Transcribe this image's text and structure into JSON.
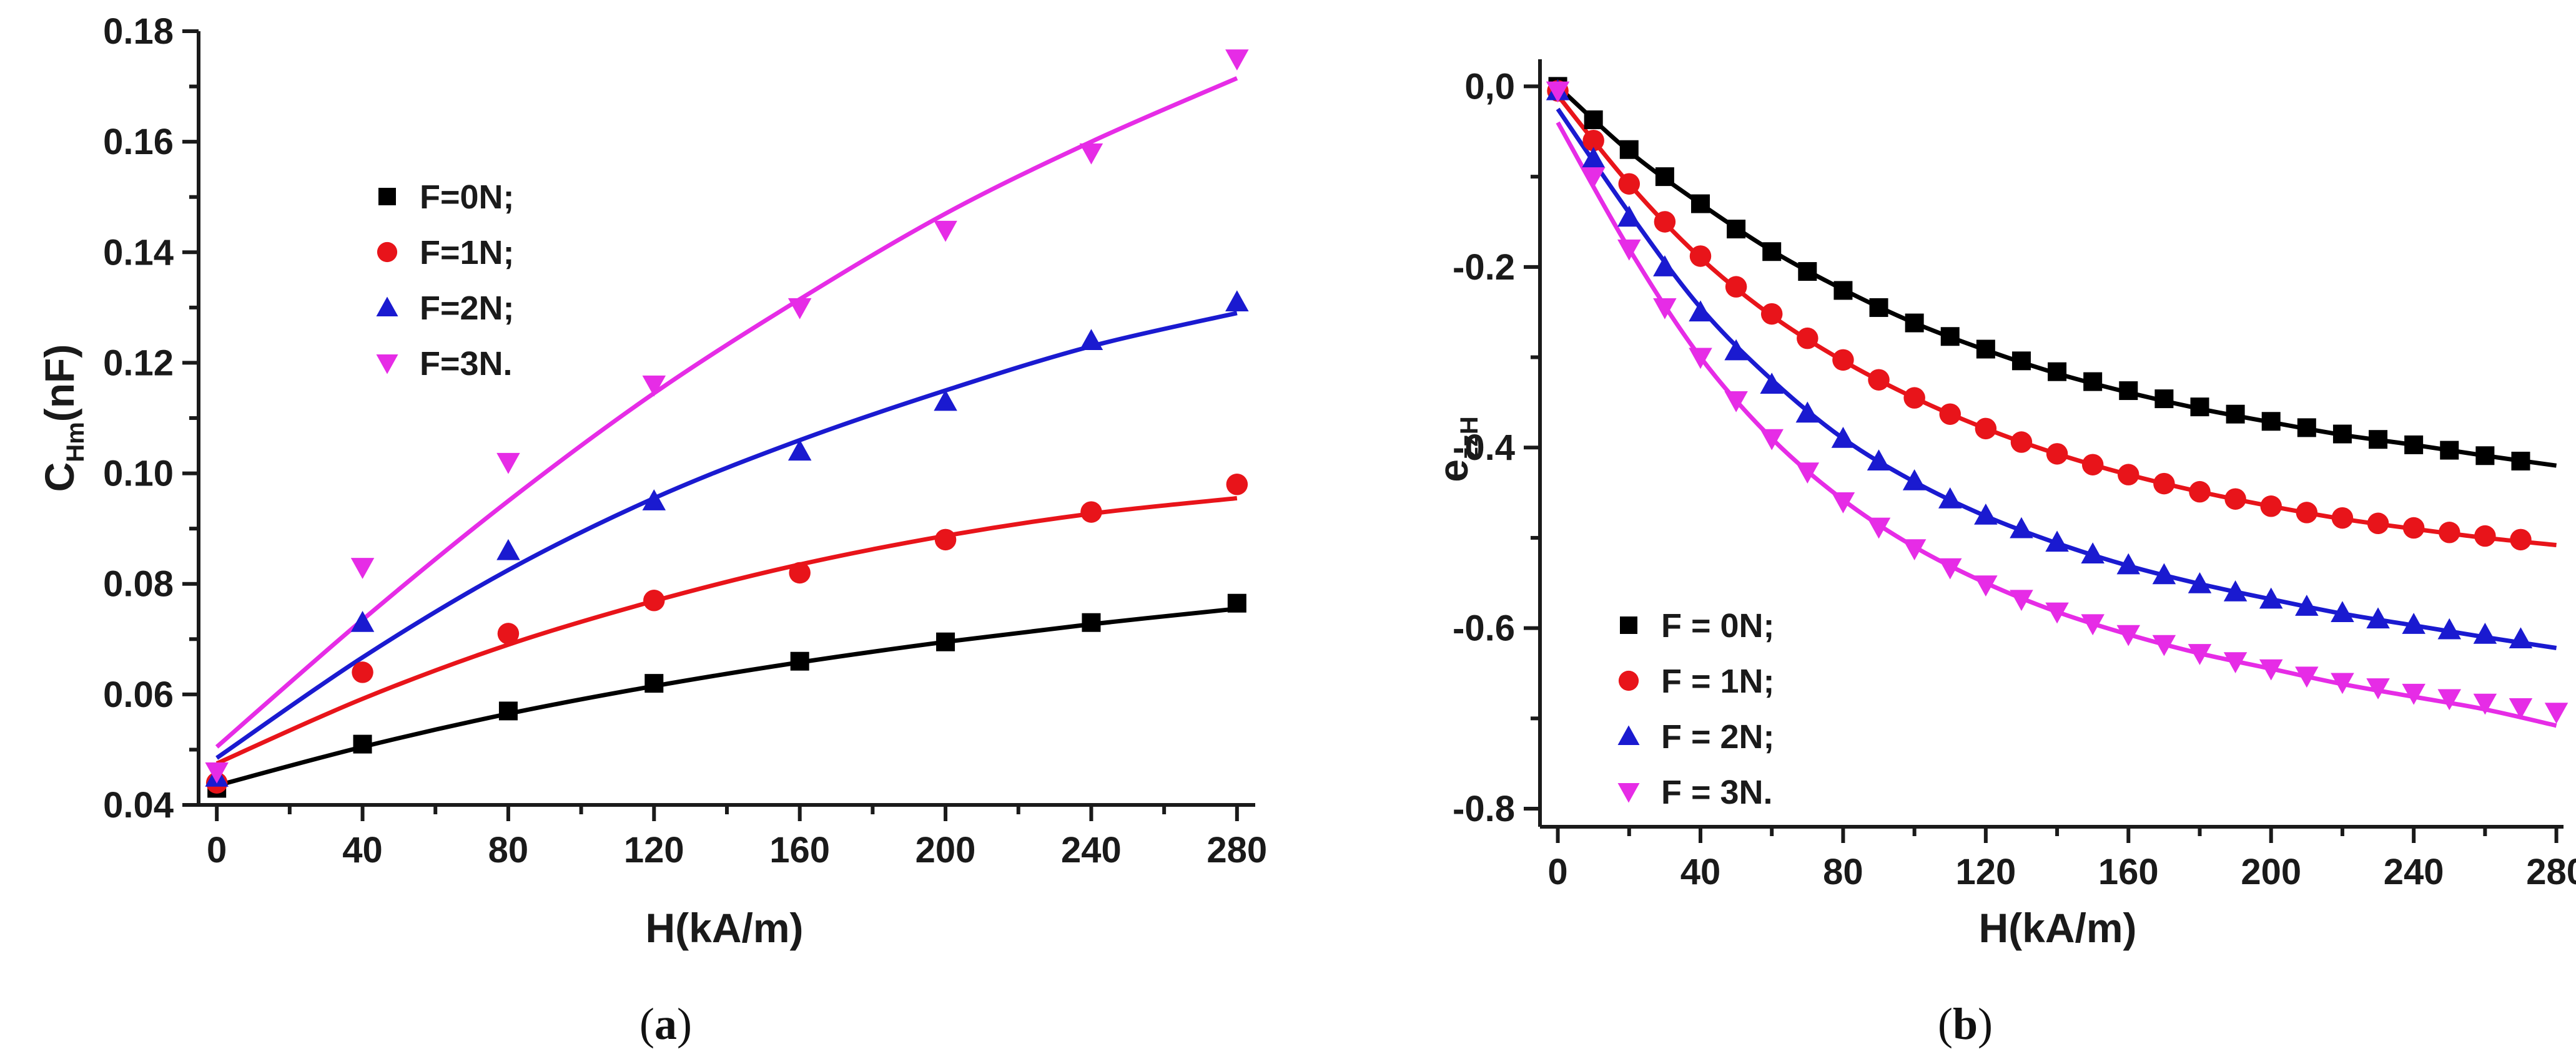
{
  "chart_data": [
    {
      "type": "scatter",
      "panel": "a",
      "caption_letter": "a",
      "xlabel": "H(kA/m)",
      "ylabel_main": "C",
      "ylabel_sub": "Hm",
      "ylabel_tail": "(nF)",
      "xlim": [
        -5,
        285
      ],
      "ylim": [
        0.04,
        0.18
      ],
      "x_ticks": [
        0,
        40,
        80,
        120,
        160,
        200,
        240,
        280
      ],
      "x_tick_labels": [
        "0",
        "40",
        "80",
        "120",
        "160",
        "200",
        "240",
        "280"
      ],
      "y_ticks": [
        0.04,
        0.06,
        0.08,
        0.1,
        0.12,
        0.14,
        0.16,
        0.18
      ],
      "y_tick_labels": [
        "0.04",
        "0.06",
        "0.08",
        "0.10",
        "0.12",
        "0.14",
        "0.16",
        "0.18"
      ],
      "legend_position": "upper-left",
      "series": [
        {
          "name": "F=0N;",
          "color": "#000000",
          "marker": "square",
          "x": [
            0,
            40,
            80,
            120,
            160,
            200,
            240,
            280
          ],
          "y": [
            0.043,
            0.051,
            0.057,
            0.062,
            0.066,
            0.0695,
            0.073,
            0.0765
          ],
          "fit": [
            [
              0,
              0.0435
            ],
            [
              40,
              0.0505
            ],
            [
              80,
              0.0565
            ],
            [
              120,
              0.0615
            ],
            [
              160,
              0.0658
            ],
            [
              200,
              0.0695
            ],
            [
              240,
              0.0727
            ],
            [
              280,
              0.0755
            ]
          ]
        },
        {
          "name": "F=1N;",
          "color": "#e8141a",
          "marker": "circle",
          "x": [
            0,
            40,
            80,
            120,
            160,
            200,
            240,
            280
          ],
          "y": [
            0.044,
            0.064,
            0.071,
            0.077,
            0.082,
            0.088,
            0.093,
            0.098
          ],
          "fit": [
            [
              0,
              0.0475
            ],
            [
              40,
              0.0592
            ],
            [
              80,
              0.069
            ],
            [
              120,
              0.0769
            ],
            [
              160,
              0.0835
            ],
            [
              200,
              0.0887
            ],
            [
              240,
              0.0927
            ],
            [
              280,
              0.0955
            ]
          ]
        },
        {
          "name": "F=2N;",
          "color": "#1a1ad0",
          "marker": "triangle-up",
          "x": [
            0,
            40,
            80,
            120,
            160,
            200,
            240,
            280
          ],
          "y": [
            0.045,
            0.073,
            0.086,
            0.095,
            0.104,
            0.113,
            0.124,
            0.131
          ],
          "fit": [
            [
              0,
              0.0485
            ],
            [
              40,
              0.0667
            ],
            [
              80,
              0.0825
            ],
            [
              120,
              0.0955
            ],
            [
              160,
              0.106
            ],
            [
              200,
              0.115
            ],
            [
              240,
              0.123
            ],
            [
              280,
              0.129
            ]
          ]
        },
        {
          "name": "F=3N.",
          "color": "#e62ce6",
          "marker": "triangle-down",
          "x": [
            0,
            40,
            80,
            120,
            160,
            200,
            240,
            280
          ],
          "y": [
            0.046,
            0.083,
            0.102,
            0.116,
            0.13,
            0.144,
            0.158,
            0.175
          ],
          "fit": [
            [
              0,
              0.0505
            ],
            [
              40,
              0.0735
            ],
            [
              80,
              0.095
            ],
            [
              120,
              0.1145
            ],
            [
              160,
              0.1315
            ],
            [
              200,
              0.147
            ],
            [
              240,
              0.16
            ],
            [
              280,
              0.1715
            ]
          ]
        }
      ]
    },
    {
      "type": "scatter",
      "panel": "b",
      "caption_letter": "b",
      "xlabel": "H(kA/m)",
      "ylabel_main": "e",
      "ylabel_sub": "zzH",
      "ylabel_tail": "",
      "xlim": [
        -5,
        282
      ],
      "ylim": [
        -0.82,
        0.03
      ],
      "x_ticks": [
        0,
        40,
        80,
        120,
        160,
        200,
        240,
        280
      ],
      "x_tick_labels": [
        "0",
        "40",
        "80",
        "120",
        "160",
        "200",
        "240",
        "280"
      ],
      "y_ticks": [
        0.0,
        -0.2,
        -0.4,
        -0.6,
        -0.8
      ],
      "y_tick_labels": [
        "0,0",
        "-0.2",
        "-0.4",
        "-0.6",
        "-0.8"
      ],
      "legend_position": "lower-left",
      "series": [
        {
          "name": "F = 0N;",
          "color": "#000000",
          "marker": "square",
          "x": [
            0,
            10,
            20,
            30,
            40,
            50,
            60,
            70,
            80,
            90,
            100,
            110,
            120,
            130,
            140,
            150,
            160,
            170,
            180,
            190,
            200,
            210,
            220,
            230,
            240,
            250,
            260,
            270
          ],
          "y": [
            0.0,
            -0.037,
            -0.07,
            -0.1,
            -0.13,
            -0.158,
            -0.183,
            -0.205,
            -0.226,
            -0.245,
            -0.262,
            -0.277,
            -0.291,
            -0.304,
            -0.316,
            -0.327,
            -0.337,
            -0.346,
            -0.355,
            -0.363,
            -0.371,
            -0.378,
            -0.385,
            -0.391,
            -0.397,
            -0.403,
            -0.409,
            -0.415
          ],
          "fit": [
            [
              0,
              0.0
            ],
            [
              20,
              -0.072
            ],
            [
              40,
              -0.13
            ],
            [
              60,
              -0.182
            ],
            [
              80,
              -0.225
            ],
            [
              100,
              -0.262
            ],
            [
              120,
              -0.292
            ],
            [
              140,
              -0.318
            ],
            [
              160,
              -0.339
            ],
            [
              180,
              -0.357
            ],
            [
              200,
              -0.372
            ],
            [
              220,
              -0.386
            ],
            [
              240,
              -0.397
            ],
            [
              260,
              -0.409
            ],
            [
              280,
              -0.42
            ]
          ]
        },
        {
          "name": "F = 1N;",
          "color": "#e8141a",
          "marker": "circle",
          "x": [
            0,
            10,
            20,
            30,
            40,
            50,
            60,
            70,
            80,
            90,
            100,
            110,
            120,
            130,
            140,
            150,
            160,
            170,
            180,
            190,
            200,
            210,
            220,
            230,
            240,
            250,
            260,
            270
          ],
          "y": [
            -0.005,
            -0.06,
            -0.108,
            -0.15,
            -0.188,
            -0.222,
            -0.252,
            -0.279,
            -0.303,
            -0.325,
            -0.345,
            -0.363,
            -0.379,
            -0.394,
            -0.407,
            -0.419,
            -0.43,
            -0.44,
            -0.449,
            -0.457,
            -0.465,
            -0.472,
            -0.478,
            -0.484,
            -0.489,
            -0.494,
            -0.498,
            -0.502
          ],
          "fit": [
            [
              0,
              -0.01
            ],
            [
              20,
              -0.108
            ],
            [
              40,
              -0.19
            ],
            [
              60,
              -0.254
            ],
            [
              80,
              -0.304
            ],
            [
              100,
              -0.345
            ],
            [
              120,
              -0.379
            ],
            [
              140,
              -0.407
            ],
            [
              160,
              -0.43
            ],
            [
              180,
              -0.449
            ],
            [
              200,
              -0.465
            ],
            [
              220,
              -0.479
            ],
            [
              240,
              -0.49
            ],
            [
              260,
              -0.5
            ],
            [
              280,
              -0.508
            ]
          ]
        },
        {
          "name": "F = 2N;",
          "color": "#1a1ad0",
          "marker": "triangle-up",
          "x": [
            0,
            10,
            20,
            30,
            40,
            50,
            60,
            70,
            80,
            90,
            100,
            110,
            120,
            130,
            140,
            150,
            160,
            170,
            180,
            190,
            200,
            210,
            220,
            230,
            240,
            250,
            260,
            270
          ],
          "y": [
            -0.005,
            -0.08,
            -0.145,
            -0.2,
            -0.25,
            -0.293,
            -0.33,
            -0.362,
            -0.39,
            -0.415,
            -0.437,
            -0.457,
            -0.475,
            -0.49,
            -0.505,
            -0.518,
            -0.53,
            -0.541,
            -0.551,
            -0.56,
            -0.568,
            -0.576,
            -0.583,
            -0.59,
            -0.596,
            -0.602,
            -0.607,
            -0.612
          ],
          "fit": [
            [
              0,
              -0.025
            ],
            [
              20,
              -0.14
            ],
            [
              40,
              -0.245
            ],
            [
              60,
              -0.325
            ],
            [
              80,
              -0.39
            ],
            [
              100,
              -0.438
            ],
            [
              120,
              -0.476
            ],
            [
              140,
              -0.506
            ],
            [
              160,
              -0.531
            ],
            [
              180,
              -0.551
            ],
            [
              200,
              -0.568
            ],
            [
              220,
              -0.584
            ],
            [
              240,
              -0.597
            ],
            [
              260,
              -0.61
            ],
            [
              280,
              -0.622
            ]
          ]
        },
        {
          "name": "F = 3N.",
          "color": "#e62ce6",
          "marker": "triangle-down",
          "x": [
            0,
            10,
            20,
            30,
            40,
            50,
            60,
            70,
            80,
            90,
            100,
            110,
            120,
            130,
            140,
            150,
            160,
            170,
            180,
            190,
            200,
            210,
            220,
            230,
            240,
            250,
            260,
            270,
            280
          ],
          "y": [
            -0.005,
            -0.1,
            -0.18,
            -0.245,
            -0.3,
            -0.348,
            -0.39,
            -0.427,
            -0.46,
            -0.488,
            -0.512,
            -0.533,
            -0.552,
            -0.568,
            -0.582,
            -0.595,
            -0.607,
            -0.618,
            -0.628,
            -0.637,
            -0.645,
            -0.653,
            -0.66,
            -0.666,
            -0.672,
            -0.678,
            -0.683,
            -0.688,
            -0.693
          ],
          "fit": [
            [
              0,
              -0.04
            ],
            [
              20,
              -0.18
            ],
            [
              40,
              -0.3
            ],
            [
              60,
              -0.39
            ],
            [
              80,
              -0.458
            ],
            [
              100,
              -0.51
            ],
            [
              120,
              -0.55
            ],
            [
              140,
              -0.582
            ],
            [
              160,
              -0.607
            ],
            [
              180,
              -0.628
            ],
            [
              200,
              -0.645
            ],
            [
              220,
              -0.662
            ],
            [
              240,
              -0.676
            ],
            [
              260,
              -0.69
            ],
            [
              280,
              -0.708
            ]
          ]
        }
      ]
    }
  ]
}
